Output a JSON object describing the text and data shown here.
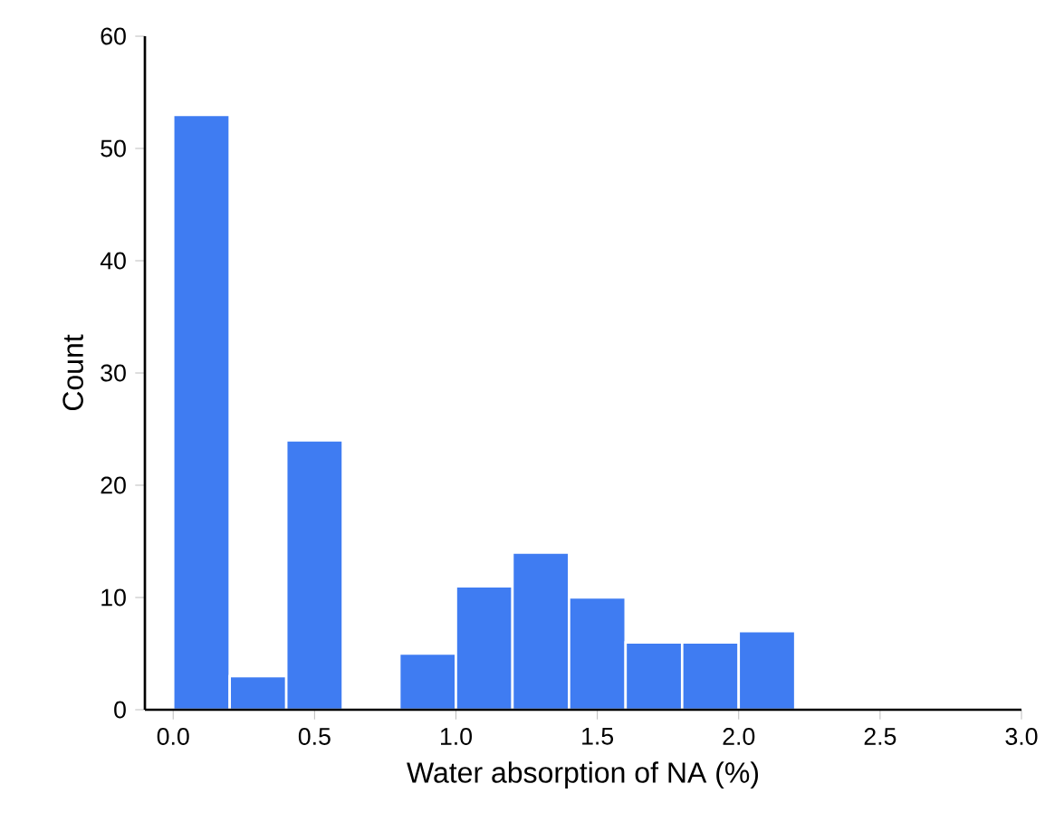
{
  "chart_data": {
    "type": "histogram",
    "xlabel": "Water absorption of NA (%)",
    "ylabel": "Count",
    "bins": [
      0.0,
      0.2,
      0.4,
      0.6,
      0.8,
      1.0,
      1.2,
      1.4,
      1.6,
      1.8,
      2.0,
      2.2
    ],
    "values": [
      53,
      3,
      24,
      0,
      5,
      11,
      14,
      10,
      6,
      6,
      7
    ],
    "color": "#3f7cf2",
    "xlim": [
      -0.1,
      3.0
    ],
    "ylim": [
      0,
      60
    ],
    "xticks": [
      {
        "value": 0.0,
        "label": "0.0"
      },
      {
        "value": 0.5,
        "label": "0.5"
      },
      {
        "value": 1.0,
        "label": "1.0"
      },
      {
        "value": 1.5,
        "label": "1.5"
      },
      {
        "value": 2.0,
        "label": "2.0"
      },
      {
        "value": 2.5,
        "label": "2.5"
      },
      {
        "value": 3.0,
        "label": "3.0"
      }
    ],
    "yticks": [
      0,
      10,
      20,
      30,
      40,
      50,
      60
    ],
    "grid": false
  }
}
